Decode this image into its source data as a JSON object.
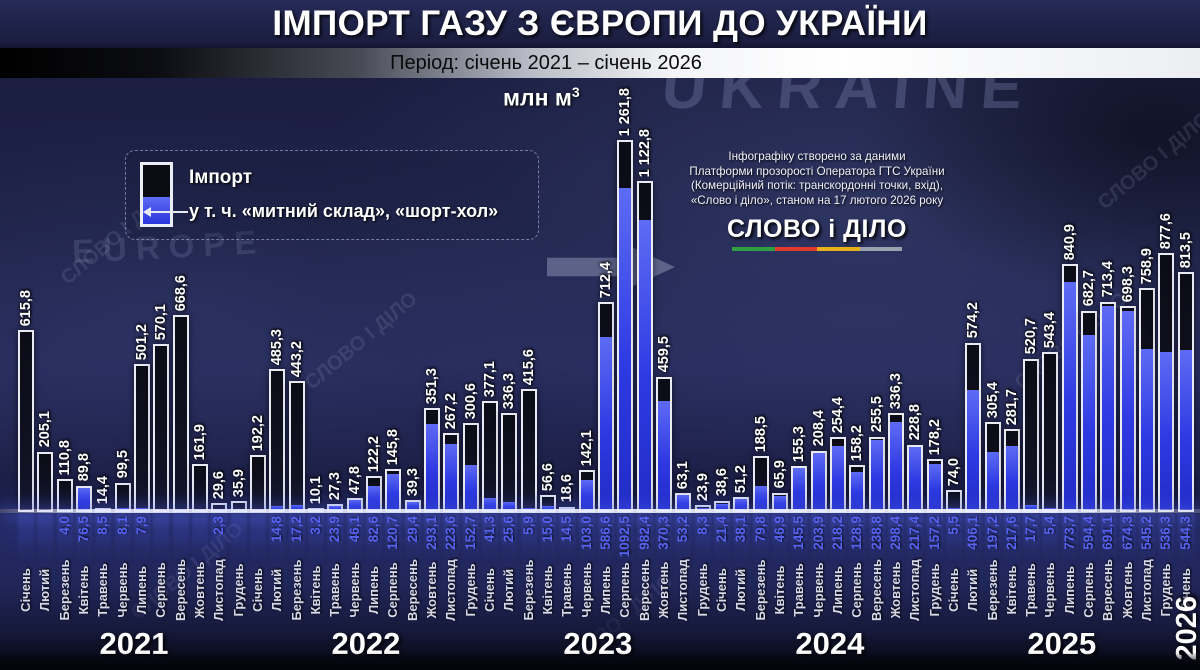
{
  "title": "ІМПОРТ ГАЗУ З ЄВРОПИ ДО УКРАЇНИ",
  "subtitle": "Період: січень 2021 – січень 2026",
  "unit": {
    "text": "млн м",
    "sup": "3"
  },
  "legend": {
    "import_label": "Імпорт",
    "sub_label": "у т. ч. «митний склад», «шорт-хол»"
  },
  "credits": {
    "lines": [
      "Інфографіку створено за даними",
      "Платформи прозорості Оператора ГТС України",
      "(Комерційний потік: транскордонні точки, вхід),",
      "«Слово і діло», станом на 17 лютого 2026 року"
    ],
    "logo": "СЛОВО і ДІЛО",
    "underline_colors": [
      "#2f9e45",
      "#df3a2e",
      "#e8b019",
      "#99a1ac"
    ]
  },
  "background": {
    "watermark": "СЛОВО І ДІЛО",
    "photo_texts": [
      "UKRAINE",
      "EUROPE"
    ]
  },
  "chart_data": {
    "type": "bar",
    "stacked": true,
    "title": "ІМПОРТ ГАЗУ З ЄВРОПИ ДО УКРАЇНИ",
    "subtitle": "Період: січень 2021 – січень 2026",
    "ylabel": "млн м3",
    "ylim": [
      0,
      1300
    ],
    "legend_position": "top-left",
    "grid": false,
    "series_names": [
      "Імпорт",
      "у т. ч. «митний склад», «шорт-хол»"
    ],
    "years": [
      {
        "label": "2021",
        "vertical": false,
        "bars": [
          {
            "month": "Січень",
            "total": 615.8,
            "label": "615,8",
            "sub": null,
            "sub_label": null
          },
          {
            "month": "Лютий",
            "total": 205.1,
            "label": "205,1",
            "sub": null,
            "sub_label": null
          },
          {
            "month": "Березень",
            "total": 110.8,
            "label": "110,8",
            "sub": 4.0,
            "sub_label": "4,0"
          },
          {
            "month": "Квітень",
            "total": 89.8,
            "label": "89,8",
            "sub": 76.5,
            "sub_label": "76,5"
          },
          {
            "month": "Травень",
            "total": 14.4,
            "label": "14,4",
            "sub": 8.5,
            "sub_label": "8,5"
          },
          {
            "month": "Червень",
            "total": 99.5,
            "label": "99,5",
            "sub": 8.1,
            "sub_label": "8,1"
          },
          {
            "month": "Липень",
            "total": 501.2,
            "label": "501,2",
            "sub": 7.9,
            "sub_label": "7,9"
          },
          {
            "month": "Серпень",
            "total": 570.1,
            "label": "570,1",
            "sub": null,
            "sub_label": null
          },
          {
            "month": "Вересень",
            "total": 668.6,
            "label": "668,6",
            "sub": null,
            "sub_label": null
          },
          {
            "month": "Жовтень",
            "total": 161.9,
            "label": "161,9",
            "sub": null,
            "sub_label": null
          },
          {
            "month": "Листопад",
            "total": 29.6,
            "label": "29,6",
            "sub": 2.3,
            "sub_label": "2,3"
          },
          {
            "month": "Грудень",
            "total": 35.9,
            "label": "35,9",
            "sub": null,
            "sub_label": null
          }
        ]
      },
      {
        "label": "2022",
        "vertical": false,
        "bars": [
          {
            "month": "Січень",
            "total": 192.2,
            "label": "192,2",
            "sub": null,
            "sub_label": null
          },
          {
            "month": "Лютий",
            "total": 485.3,
            "label": "485,3",
            "sub": 14.8,
            "sub_label": "14,8"
          },
          {
            "month": "Березень",
            "total": 443.2,
            "label": "443,2",
            "sub": 17.2,
            "sub_label": "17,2"
          },
          {
            "month": "Квітень",
            "total": 10.1,
            "label": "10,1",
            "sub": 3.2,
            "sub_label": "3,2"
          },
          {
            "month": "Травень",
            "total": 27.3,
            "label": "27,3",
            "sub": 23.9,
            "sub_label": "23,9"
          },
          {
            "month": "Червень",
            "total": 47.8,
            "label": "47,8",
            "sub": 46.1,
            "sub_label": "46,1"
          },
          {
            "month": "Липень",
            "total": 122.2,
            "label": "122,2",
            "sub": 82.6,
            "sub_label": "82,6"
          },
          {
            "month": "Серпень",
            "total": 145.8,
            "label": "145,8",
            "sub": 120.7,
            "sub_label": "120,7"
          },
          {
            "month": "Вересень",
            "total": 39.3,
            "label": "39,3",
            "sub": 29.4,
            "sub_label": "29,4"
          },
          {
            "month": "Жовтень",
            "total": 351.3,
            "label": "351,3",
            "sub": 293.1,
            "sub_label": "293,1"
          },
          {
            "month": "Листопад",
            "total": 267.2,
            "label": "267,2",
            "sub": 223.6,
            "sub_label": "223,6"
          },
          {
            "month": "Грудень",
            "total": 300.6,
            "label": "300,6",
            "sub": 152.7,
            "sub_label": "152,7"
          }
        ]
      },
      {
        "label": "2023",
        "vertical": false,
        "bars": [
          {
            "month": "Січень",
            "total": 377.1,
            "label": "377,1",
            "sub": 41.3,
            "sub_label": "41,3"
          },
          {
            "month": "Лютий",
            "total": 336.3,
            "label": "336,3",
            "sub": 25.6,
            "sub_label": "25,6"
          },
          {
            "month": "Березень",
            "total": 415.6,
            "label": "415,6",
            "sub": 5.9,
            "sub_label": "5,9"
          },
          {
            "month": "Квітень",
            "total": 56.6,
            "label": "56,6",
            "sub": 15.0,
            "sub_label": "15,0"
          },
          {
            "month": "Травень",
            "total": 18.6,
            "label": "18,6",
            "sub": 14.5,
            "sub_label": "14,5"
          },
          {
            "month": "Червень",
            "total": 142.1,
            "label": "142,1",
            "sub": 103.0,
            "sub_label": "103,0"
          },
          {
            "month": "Липень",
            "total": 712.4,
            "label": "712,4",
            "sub": 586.6,
            "sub_label": "586,6"
          },
          {
            "month": "Серпень",
            "total": 1261.8,
            "label": "1 261,8",
            "sub": 1092.5,
            "sub_label": "1092,5"
          },
          {
            "month": "Вересень",
            "total": 1122.8,
            "label": "1 122,8",
            "sub": 982.4,
            "sub_label": "982,4"
          },
          {
            "month": "Жовтень",
            "total": 459.5,
            "label": "459,5",
            "sub": 370.3,
            "sub_label": "370,3"
          },
          {
            "month": "Листопад",
            "total": 63.1,
            "label": "63,1",
            "sub": 53.2,
            "sub_label": "53,2"
          },
          {
            "month": "Грудень",
            "total": 23.9,
            "label": "23,9",
            "sub": 8.3,
            "sub_label": "8,3"
          }
        ]
      },
      {
        "label": "2024",
        "vertical": false,
        "bars": [
          {
            "month": "Січень",
            "total": 38.6,
            "label": "38,6",
            "sub": 21.4,
            "sub_label": "21,4"
          },
          {
            "month": "Лютий",
            "total": 51.2,
            "label": "51,2",
            "sub": 38.1,
            "sub_label": "38,1"
          },
          {
            "month": "Березень",
            "total": 188.5,
            "label": "188,5",
            "sub": 79.8,
            "sub_label": "79,8"
          },
          {
            "month": "Квітень",
            "total": 65.9,
            "label": "65,9",
            "sub": 46.9,
            "sub_label": "46,9"
          },
          {
            "month": "Травень",
            "total": 155.3,
            "label": "155,3",
            "sub": 145.5,
            "sub_label": "145,5"
          },
          {
            "month": "Червень",
            "total": 208.4,
            "label": "208,4",
            "sub": 203.9,
            "sub_label": "203,9"
          },
          {
            "month": "Липень",
            "total": 254.4,
            "label": "254,4",
            "sub": 218.2,
            "sub_label": "218,2"
          },
          {
            "month": "Серпень",
            "total": 158.2,
            "label": "158,2",
            "sub": 128.9,
            "sub_label": "128,9"
          },
          {
            "month": "Вересень",
            "total": 255.5,
            "label": "255,5",
            "sub": 238.8,
            "sub_label": "238,8"
          },
          {
            "month": "Жовтень",
            "total": 336.3,
            "label": "336,3",
            "sub": 298.4,
            "sub_label": "298,4"
          },
          {
            "month": "Листопад",
            "total": 228.8,
            "label": "228,8",
            "sub": 217.4,
            "sub_label": "217,4"
          },
          {
            "month": "Грудень",
            "total": 178.2,
            "label": "178,2",
            "sub": 157.2,
            "sub_label": "157,2"
          }
        ]
      },
      {
        "label": "2025",
        "vertical": false,
        "bars": [
          {
            "month": "Січень",
            "total": 74.0,
            "label": "74,0",
            "sub": 5.5,
            "sub_label": "5,5"
          },
          {
            "month": "Лютий",
            "total": 574.2,
            "label": "574,2",
            "sub": 406.1,
            "sub_label": "406,1"
          },
          {
            "month": "Березень",
            "total": 305.4,
            "label": "305,4",
            "sub": 197.2,
            "sub_label": "197,2"
          },
          {
            "month": "Квітень",
            "total": 281.7,
            "label": "281,7",
            "sub": 217.6,
            "sub_label": "217,6"
          },
          {
            "month": "Травень",
            "total": 520.7,
            "label": "520,7",
            "sub": 17.7,
            "sub_label": "17,7"
          },
          {
            "month": "Червень",
            "total": 543.4,
            "label": "543,4",
            "sub": 5.4,
            "sub_label": "5,4"
          },
          {
            "month": "Липень",
            "total": 840.9,
            "label": "840,9",
            "sub": 773.7,
            "sub_label": "773,7"
          },
          {
            "month": "Серпень",
            "total": 682.7,
            "label": "682,7",
            "sub": 594.4,
            "sub_label": "594,4"
          },
          {
            "month": "Вересень",
            "total": 713.4,
            "label": "713,4",
            "sub": 691.1,
            "sub_label": "691,1"
          },
          {
            "month": "Жовтень",
            "total": 698.3,
            "label": "698,3",
            "sub": 674.3,
            "sub_label": "674,3"
          },
          {
            "month": "Листопад",
            "total": 758.9,
            "label": "758,9",
            "sub": 545.2,
            "sub_label": "545,2"
          },
          {
            "month": "Грудень",
            "total": 877.6,
            "label": "877,6",
            "sub": 536.3,
            "sub_label": "536,3"
          }
        ]
      },
      {
        "label": "2026",
        "vertical": true,
        "bars": [
          {
            "month": "Січень",
            "total": 813.5,
            "label": "813,5",
            "sub": 544.3,
            "sub_label": "544,3"
          }
        ]
      }
    ]
  }
}
